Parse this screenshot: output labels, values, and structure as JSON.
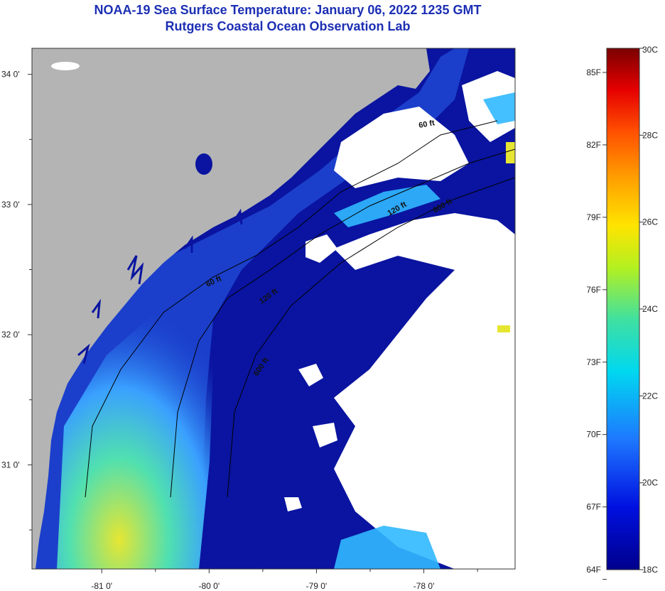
{
  "header": {
    "title": "NOAA-19 Sea Surface Temperature:  January 06, 2022 1235 GMT",
    "subtitle": "Rutgers Coastal Ocean Observation Lab"
  },
  "map": {
    "lat_ticks": [
      {
        "label": "34 0'",
        "lat": 34.0
      },
      {
        "label": "33 0'",
        "lat": 33.0
      },
      {
        "label": "32 0'",
        "lat": 32.0
      },
      {
        "label": "31 0'",
        "lat": 31.0
      }
    ],
    "lon_ticks": [
      {
        "label": "-81 0'",
        "lon": -81.0
      },
      {
        "label": "-80 0'",
        "lon": -80.0
      },
      {
        "label": "-79 0'",
        "lon": -79.0
      },
      {
        "label": "-78 0'",
        "lon": -78.0
      }
    ],
    "lat_range": [
      30.2,
      34.2
    ],
    "lon_range": [
      -81.65,
      -77.15
    ],
    "contour_labels": [
      "60 ft",
      "120 ft",
      "600 ft",
      "60 ft",
      "120 ft",
      "600 ft"
    ],
    "colors": {
      "land": "#b4b4b4",
      "cloud": "#ffffff",
      "cold_water": "#0a14a0",
      "mid_water": "#1e64e6",
      "warm_water": "#e6e632"
    }
  },
  "colorbar": {
    "f_labels": [
      "85F",
      "82F",
      "79F",
      "76F",
      "73F",
      "70F",
      "67F",
      "64F"
    ],
    "c_labels": [
      "30C",
      "28C",
      "26C",
      "24C",
      "22C",
      "20C",
      "18C"
    ],
    "range_c": [
      18,
      30
    ]
  }
}
